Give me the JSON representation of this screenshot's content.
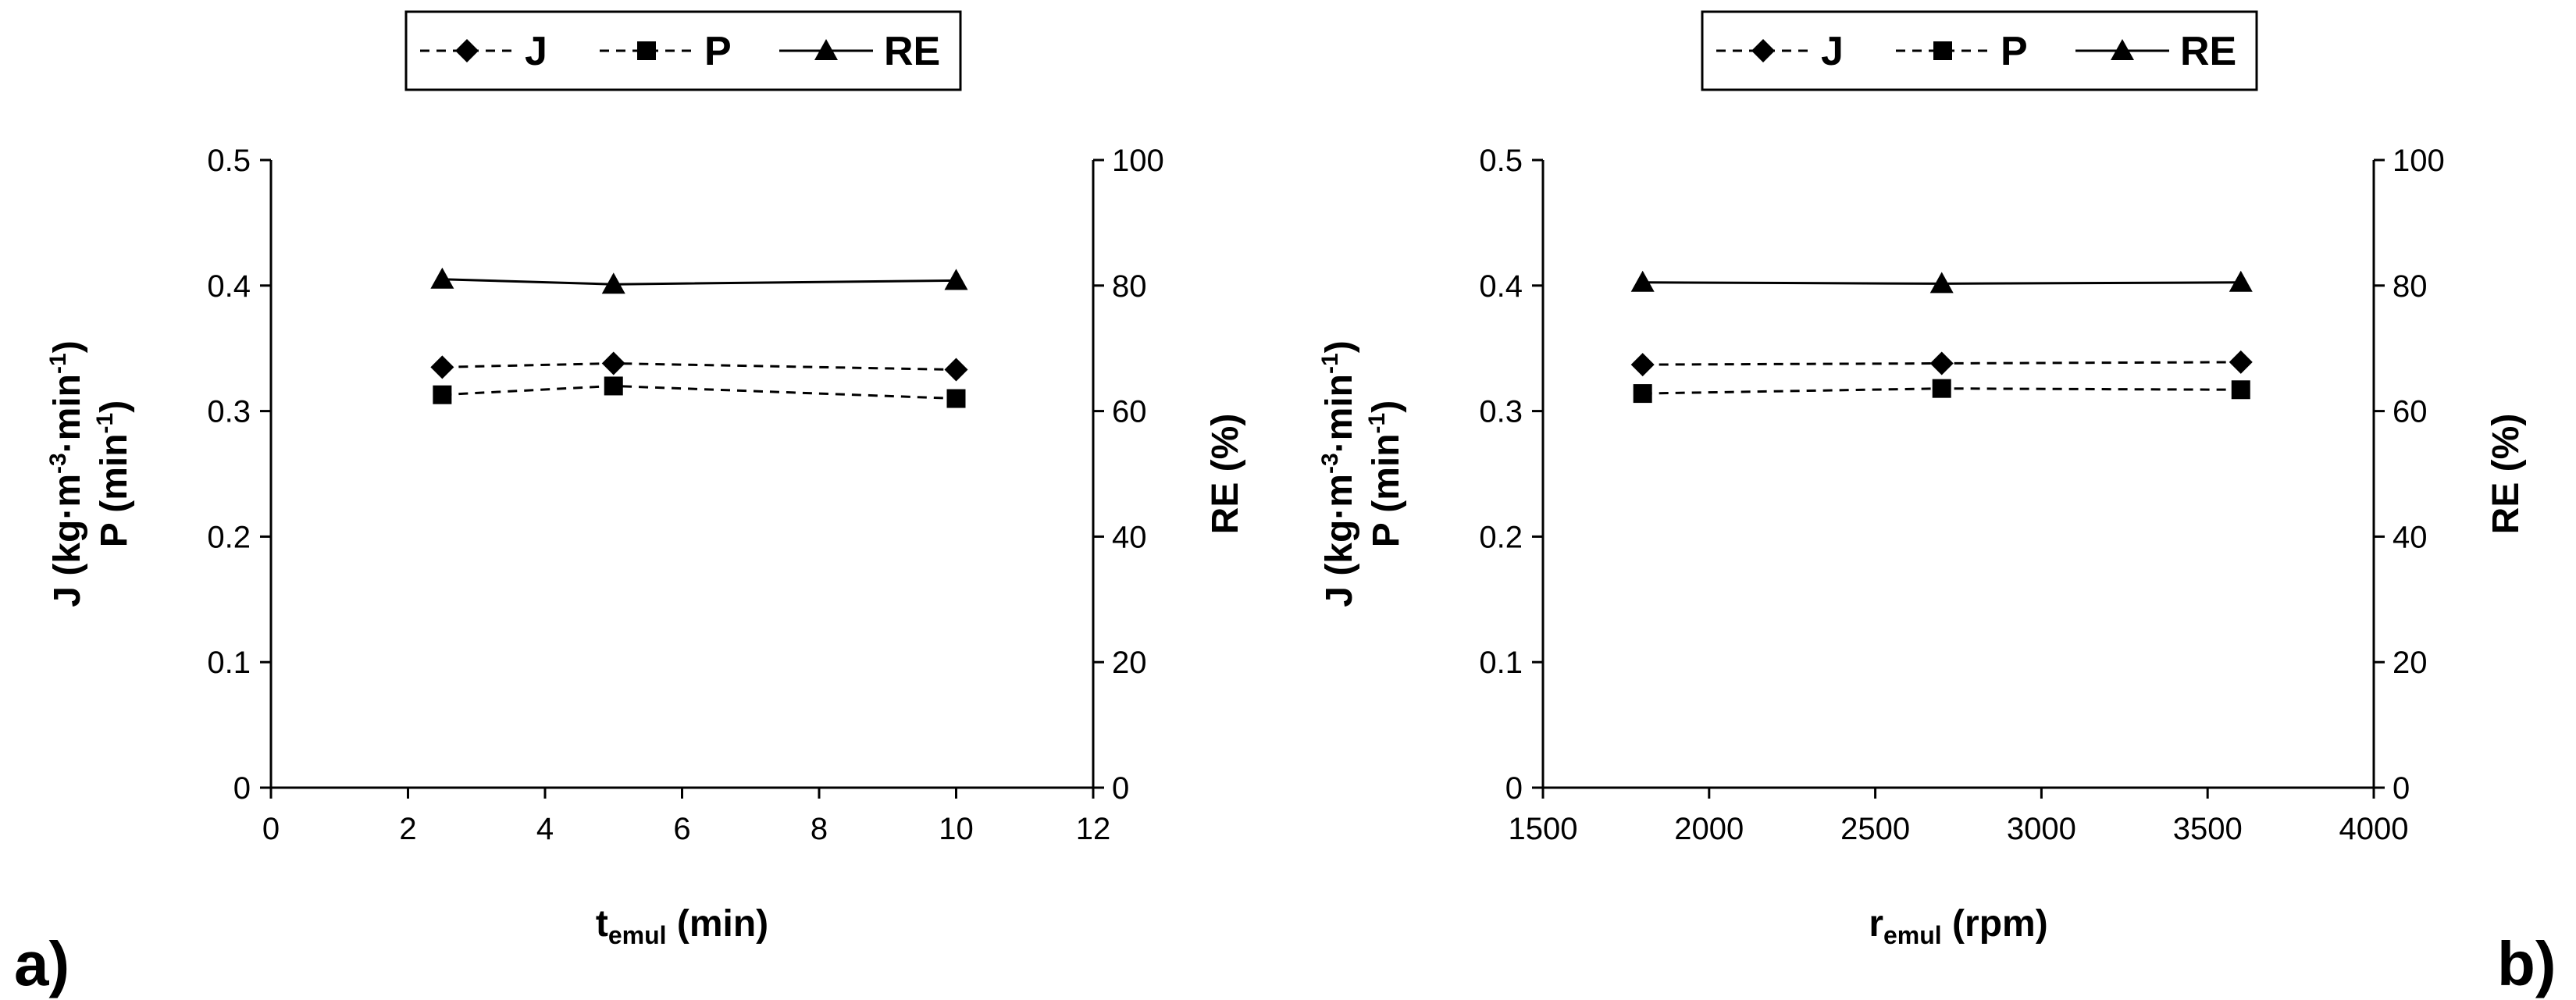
{
  "chart_data": [
    {
      "type": "line",
      "panel_label": "a)",
      "title": "",
      "xlabel_main": "t",
      "xlabel_sub": "emul",
      "xlabel_unit": " (min)",
      "ylabel_left_j": "J (kg·m",
      "ylabel_left_j_sup1": "-3",
      "ylabel_left_j_mid": "·min",
      "ylabel_left_j_sup2": "-1",
      "ylabel_left_j_end": ")",
      "ylabel_left_p": "P (min",
      "ylabel_left_p_sup": "-1",
      "ylabel_left_p_end": ")",
      "ylabel_right": "RE (%)",
      "xlim": [
        0,
        12
      ],
      "xticks": [
        0,
        2,
        4,
        6,
        8,
        10,
        12
      ],
      "xtick_labels": [
        "0",
        "2",
        "4",
        "6",
        "8",
        "10",
        "12"
      ],
      "ylim_left": [
        0,
        0.5
      ],
      "yticks_left": [
        0,
        0.1,
        0.2,
        0.3,
        0.4,
        0.5
      ],
      "ytick_labels_left": [
        "0",
        "0.1",
        "0.2",
        "0.3",
        "0.4",
        "0.5"
      ],
      "ylim_right": [
        0,
        100
      ],
      "yticks_right": [
        0,
        20,
        40,
        60,
        80,
        100
      ],
      "ytick_labels_right": [
        "0",
        "20",
        "40",
        "60",
        "80",
        "100"
      ],
      "grid": false,
      "legend": {
        "position": "top-center",
        "entries": [
          "J",
          "P",
          "RE"
        ]
      },
      "series": [
        {
          "name": "J",
          "axis": "left",
          "marker": "diamond",
          "line": "dashed",
          "x": [
            2.5,
            5,
            10
          ],
          "values": [
            0.335,
            0.338,
            0.333
          ]
        },
        {
          "name": "P",
          "axis": "left",
          "marker": "square",
          "line": "dashed",
          "x": [
            2.5,
            5,
            10
          ],
          "values": [
            0.313,
            0.32,
            0.31
          ]
        },
        {
          "name": "RE",
          "axis": "right",
          "marker": "triangle",
          "line": "solid",
          "x": [
            2.5,
            5,
            10
          ],
          "values": [
            81,
            80.2,
            80.8
          ]
        }
      ]
    },
    {
      "type": "line",
      "panel_label": "b)",
      "title": "",
      "xlabel_main": "r",
      "xlabel_sub": "emul",
      "xlabel_unit": " (rpm)",
      "ylabel_left_j": "J (kg·m",
      "ylabel_left_j_sup1": "-3",
      "ylabel_left_j_mid": "·min",
      "ylabel_left_j_sup2": "-1",
      "ylabel_left_j_end": ")",
      "ylabel_left_p": "P (min",
      "ylabel_left_p_sup": "-1",
      "ylabel_left_p_end": ")",
      "ylabel_right": "RE (%)",
      "xlim": [
        1500,
        4000
      ],
      "xticks": [
        1500,
        2000,
        2500,
        3000,
        3500,
        4000
      ],
      "xtick_labels": [
        "1500",
        "2000",
        "2500",
        "3000",
        "3500",
        "4000"
      ],
      "ylim_left": [
        0,
        0.5
      ],
      "yticks_left": [
        0,
        0.1,
        0.2,
        0.3,
        0.4,
        0.5
      ],
      "ytick_labels_left": [
        "0",
        "0.1",
        "0.2",
        "0.3",
        "0.4",
        "0.5"
      ],
      "ylim_right": [
        0,
        100
      ],
      "yticks_right": [
        0,
        20,
        40,
        60,
        80,
        100
      ],
      "ytick_labels_right": [
        "0",
        "20",
        "40",
        "60",
        "80",
        "100"
      ],
      "grid": false,
      "legend": {
        "position": "top-center",
        "entries": [
          "J",
          "P",
          "RE"
        ]
      },
      "series": [
        {
          "name": "J",
          "axis": "left",
          "marker": "diamond",
          "line": "dashed",
          "x": [
            1800,
            2700,
            3600
          ],
          "values": [
            0.337,
            0.338,
            0.339
          ]
        },
        {
          "name": "P",
          "axis": "left",
          "marker": "square",
          "line": "dashed",
          "x": [
            1800,
            2700,
            3600
          ],
          "values": [
            0.314,
            0.318,
            0.317
          ]
        },
        {
          "name": "RE",
          "axis": "right",
          "marker": "triangle",
          "line": "solid",
          "x": [
            1800,
            2700,
            3600
          ],
          "values": [
            80.5,
            80.3,
            80.5
          ]
        }
      ]
    }
  ]
}
